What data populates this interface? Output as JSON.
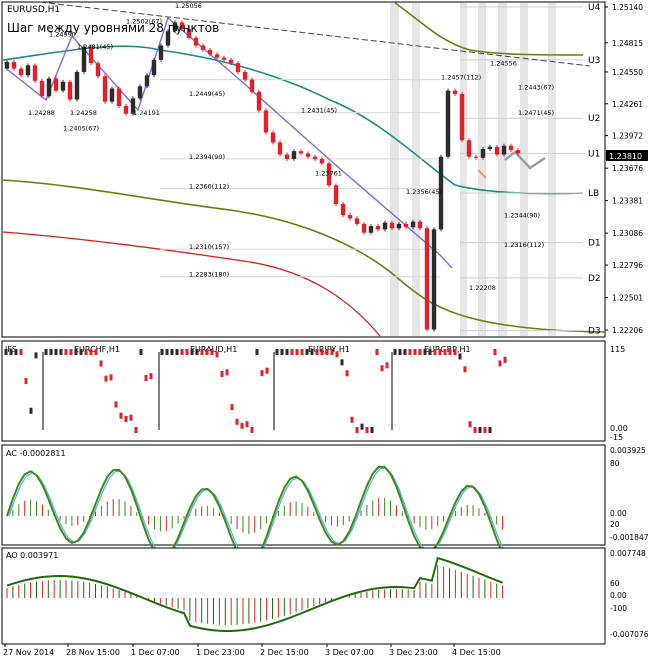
{
  "symbol_label": "EURUSD,H1",
  "subtitle": "Шаг между уровнями 28 пунктов",
  "current_price": "1.23810",
  "colors": {
    "bull": "#2b2b2b",
    "bear": "#e0212b",
    "teal_ma": "#1b8a7a",
    "olive_ma": "#6b7d12",
    "red_ma": "#d81e1e",
    "trend": "#7b6fd6",
    "ac_line": "#3f8a1c",
    "ac_signal": "#5ab0d8",
    "ao_line": "#1f6b0c"
  },
  "price_axis": [
    "1.25140",
    "1.24815",
    "1.24550",
    "1.24261",
    "1.23972",
    "1.23676",
    "1.23381",
    "1.23086",
    "1.22796",
    "1.22501",
    "1.22206"
  ],
  "levels": [
    {
      "name": "U4",
      "price": 1.2514
    },
    {
      "name": "U3",
      "price": 1.2466
    },
    {
      "name": "U2",
      "price": 1.2413
    },
    {
      "name": "U1",
      "price": 1.2381
    },
    {
      "name": "LB",
      "price": 1.2345
    },
    {
      "name": "D1",
      "price": 1.23
    },
    {
      "name": "D2",
      "price": 1.2268
    },
    {
      "name": "D3",
      "price": 1.222
    }
  ],
  "swing_labels": [
    {
      "text": "1.25056",
      "t": 24,
      "p": 1.2513
    },
    {
      "text": "1.2502(67)",
      "t": 17,
      "p": 1.2499
    },
    {
      "text": "1.24990",
      "t": 6,
      "p": 1.2487
    },
    {
      "text": "1.2481(45)",
      "t": 10,
      "p": 1.2476
    },
    {
      "text": "1.24288",
      "t": 3,
      "p": 1.2416
    },
    {
      "text": "1.24258",
      "t": 9,
      "p": 1.2416
    },
    {
      "text": "1.24191",
      "t": 18,
      "p": 1.2416
    },
    {
      "text": "1.2405(67)",
      "t": 8,
      "p": 1.2402
    },
    {
      "text": "1.2449(45)",
      "t": 26,
      "p": 1.2433
    },
    {
      "text": "1.2431(45)",
      "t": 42,
      "p": 1.2418
    },
    {
      "text": "1.2394(90)",
      "t": 26,
      "p": 1.2376
    },
    {
      "text": "1.23761",
      "t": 44,
      "p": 1.2361
    },
    {
      "text": "1.2366(112)",
      "t": 26,
      "p": 1.2349
    },
    {
      "text": "1.2356(45)",
      "t": 57,
      "p": 1.2344
    },
    {
      "text": "1.2310(157)",
      "t": 26,
      "p": 1.2294
    },
    {
      "text": "1.2283(180)",
      "t": 26,
      "p": 1.2269
    },
    {
      "text": "1.24556",
      "t": 69,
      "p": 1.2461
    },
    {
      "text": "1.2457(112)",
      "t": 62,
      "p": 1.2448
    },
    {
      "text": "1.2443(67)",
      "t": 73,
      "p": 1.2439
    },
    {
      "text": "1.2471(45)",
      "t": 73,
      "p": 1.2416
    },
    {
      "text": "1.2344(90)",
      "t": 71,
      "p": 1.2323
    },
    {
      "text": "1.2316(112)",
      "t": 71,
      "p": 1.2296
    },
    {
      "text": "1.22208",
      "t": 66,
      "p": 1.2257
    }
  ],
  "time_labels": [
    "27 Nov 2014",
    "28 Nov 15:00",
    "1 Dec 07:00",
    "1 Dec 23:00",
    "2 Dec 15:00",
    "3 Dec 07:00",
    "3 Dec 23:00",
    "4 Dec 15:00"
  ],
  "ifs": {
    "label": "IFS",
    "pairs": [
      "EURCHF,H1",
      "EURAUD,H1",
      "EURJPY,H1",
      "EURGBP,H1"
    ],
    "axis_top": "115",
    "axis_mid": "0.00",
    "axis_bottom": "-15"
  },
  "ac": {
    "label": "AC -0.0002811",
    "axis": [
      "0.003925",
      "80",
      "0.00",
      "20",
      "-0.001847"
    ]
  },
  "ao": {
    "label": "AO 0.003971",
    "axis": [
      "0.007748",
      "60",
      "0.00",
      "-100",
      "-0.007076"
    ]
  },
  "chart_data": {
    "type": "candlestick",
    "title": "EURUSD,H1",
    "subtitle": "Шаг между уровнями 28 пунктов",
    "closes": [
      1.2464,
      1.2458,
      1.2452,
      1.2461,
      1.2447,
      1.2433,
      1.2449,
      1.2438,
      1.2446,
      1.243,
      1.2455,
      1.2478,
      1.2463,
      1.2451,
      1.2428,
      1.244,
      1.2424,
      1.2417,
      1.2431,
      1.2442,
      1.2452,
      1.2466,
      1.2479,
      1.2492,
      1.25,
      1.2494,
      1.2486,
      1.2479,
      1.2475,
      1.2471,
      1.2468,
      1.2466,
      1.2463,
      1.2455,
      1.2448,
      1.2437,
      1.242,
      1.24,
      1.2391,
      1.238,
      1.2376,
      1.2383,
      1.2381,
      1.2378,
      1.2376,
      1.2372,
      1.2352,
      1.2335,
      1.2325,
      1.2322,
      1.2317,
      1.2309,
      1.2315,
      1.2312,
      1.2318,
      1.2313,
      1.2317,
      1.2314,
      1.2319,
      1.2313,
      1.2221,
      1.2312,
      1.2378,
      1.2438,
      1.2435,
      1.2393,
      1.2378,
      1.2377,
      1.2385,
      1.2387,
      1.238,
      1.2388,
      1.2384,
      1.2381
    ]
  }
}
